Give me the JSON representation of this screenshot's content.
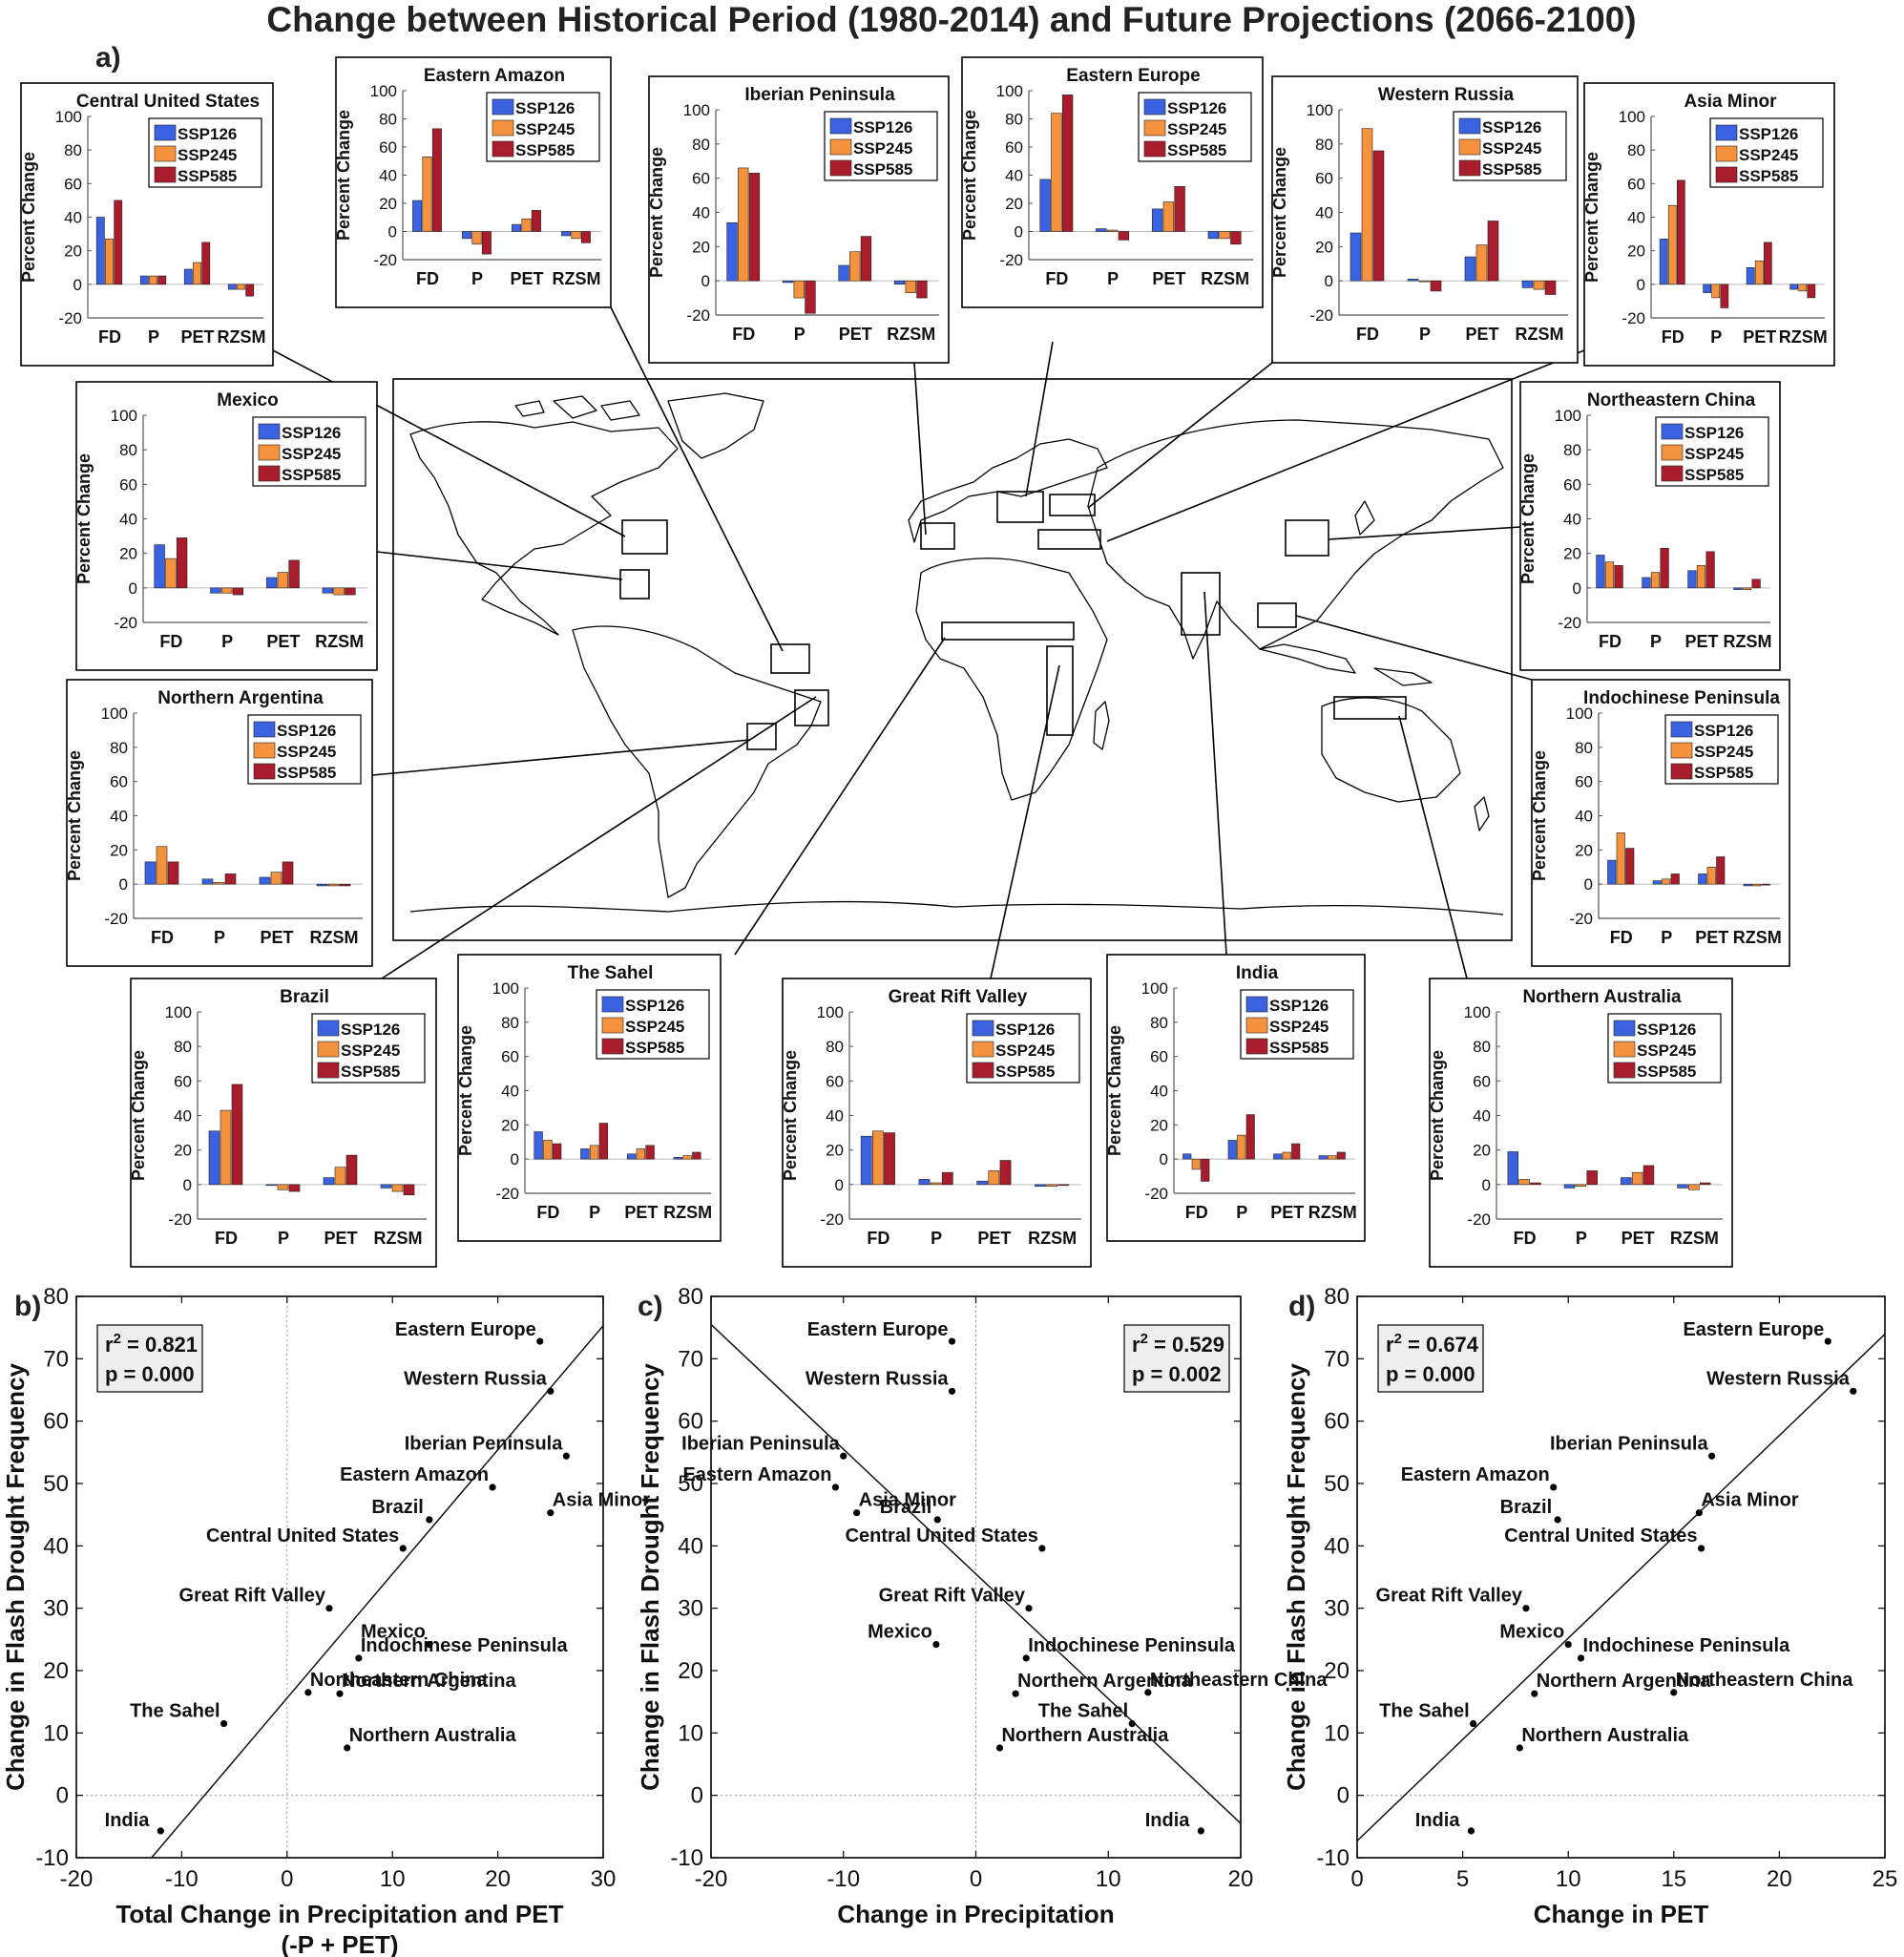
{
  "figure": {
    "title": "Change between Historical Period (1980-2014) and Future Projections (2066-2100)",
    "panel_a_label": "a)"
  },
  "colors": {
    "SSP126": "#3b62e0",
    "SSP245": "#f5923e",
    "SSP585": "#a81c2c",
    "frame": "#000000",
    "r2box": "#eeeeee"
  },
  "chart_data": [
    {
      "type": "bar",
      "panel": "a",
      "description": "Percent change in regional drivers",
      "ylabel": "Percent Change",
      "ylim": [
        -20,
        100
      ],
      "yticks": [
        -20,
        0,
        20,
        40,
        60,
        80,
        100
      ],
      "categories": [
        "FD",
        "P",
        "PET",
        "RZSM"
      ],
      "series_names": [
        "SSP126",
        "SSP245",
        "SSP585"
      ],
      "regions": [
        {
          "name": "Central United States",
          "values": [
            [
              40,
              5,
              9,
              -3
            ],
            [
              27,
              5,
              13,
              -3
            ],
            [
              50,
              5,
              25,
              -7
            ]
          ]
        },
        {
          "name": "Eastern Amazon",
          "values": [
            [
              22,
              -5,
              5,
              -3
            ],
            [
              53,
              -9,
              9,
              -5
            ],
            [
              73,
              -16,
              15,
              -8
            ]
          ]
        },
        {
          "name": "Iberian Peninsula",
          "values": [
            [
              34,
              -1,
              9,
              -2
            ],
            [
              66,
              -10,
              17,
              -7
            ],
            [
              63,
              -19,
              26,
              -10
            ]
          ]
        },
        {
          "name": "Eastern Europe",
          "values": [
            [
              37,
              2,
              16,
              -5
            ],
            [
              84,
              1,
              21,
              -5
            ],
            [
              97,
              -6,
              32,
              -9
            ]
          ]
        },
        {
          "name": "Western Russia",
          "values": [
            [
              28,
              1,
              14,
              -4
            ],
            [
              89,
              0,
              21,
              -5
            ],
            [
              76,
              -6,
              35,
              -8
            ]
          ]
        },
        {
          "name": "Asia Minor",
          "values": [
            [
              27,
              -5,
              10,
              -3
            ],
            [
              47,
              -8,
              14,
              -4
            ],
            [
              62,
              -14,
              25,
              -8
            ]
          ]
        },
        {
          "name": "Mexico",
          "values": [
            [
              25,
              -3,
              6,
              -3
            ],
            [
              17,
              -3,
              9,
              -4
            ],
            [
              29,
              -4,
              16,
              -4
            ]
          ]
        },
        {
          "name": "Northeastern China",
          "values": [
            [
              19,
              6,
              10,
              -1
            ],
            [
              15,
              9,
              13,
              -1
            ],
            [
              13,
              23,
              21,
              5
            ]
          ]
        },
        {
          "name": "Northern Argentina",
          "values": [
            [
              13,
              3,
              4,
              -1
            ],
            [
              22,
              1,
              7,
              -1
            ],
            [
              13,
              6,
              13,
              -1
            ]
          ]
        },
        {
          "name": "Indochinese Peninsula",
          "values": [
            [
              14,
              2,
              6,
              -1
            ],
            [
              30,
              3,
              10,
              -1
            ],
            [
              21,
              6,
              16,
              0
            ]
          ]
        },
        {
          "name": "Brazil",
          "values": [
            [
              31,
              0,
              4,
              -2
            ],
            [
              43,
              -3,
              10,
              -4
            ],
            [
              58,
              -4,
              17,
              -6
            ]
          ]
        },
        {
          "name": "The Sahel",
          "values": [
            [
              16,
              6,
              3,
              1
            ],
            [
              11,
              8,
              6,
              2
            ],
            [
              9,
              21,
              8,
              4
            ]
          ]
        },
        {
          "name": "Great Rift Valley",
          "values": [
            [
              28,
              3,
              2,
              -1
            ],
            [
              31,
              1,
              8,
              -1
            ],
            [
              30,
              7,
              14,
              0
            ]
          ]
        },
        {
          "name": "India",
          "values": [
            [
              3,
              11,
              3,
              2
            ],
            [
              -6,
              14,
              4,
              2
            ],
            [
              -13,
              26,
              9,
              4
            ]
          ]
        },
        {
          "name": "Northern Australia",
          "values": [
            [
              19,
              -2,
              4,
              -2
            ],
            [
              3,
              -1,
              7,
              -3
            ],
            [
              1,
              8,
              11,
              1
            ]
          ]
        }
      ]
    },
    {
      "type": "scatter",
      "panel": "b)",
      "xlabel": "Total Change in Precipitation and PET",
      "xlabel2": "(-P + PET)",
      "ylabel": "Change in Flash Drought Frequency",
      "xlim": [
        -20,
        30
      ],
      "ylim": [
        -10,
        80
      ],
      "xticks": [
        -20,
        -10,
        0,
        10,
        20,
        30
      ],
      "yticks": [
        -10,
        0,
        10,
        20,
        30,
        40,
        50,
        60,
        70,
        80
      ],
      "r2_label": "r",
      "r2_sup": "2",
      "r2_value": "= 0.821",
      "p_text": "p = 0.000",
      "fit": {
        "slope": 1.99,
        "intercept": 15.6
      },
      "points": [
        {
          "label": "Eastern Europe",
          "x": 24.0,
          "y": 72.8
        },
        {
          "label": "Western Russia",
          "x": 25.0,
          "y": 64.8
        },
        {
          "label": "Iberian Peninsula",
          "x": 26.5,
          "y": 54.4
        },
        {
          "label": "Eastern Amazon",
          "x": 19.5,
          "y": 49.4
        },
        {
          "label": "Brazil",
          "x": 13.5,
          "y": 44.2
        },
        {
          "label": "Asia Minor",
          "x": 25.0,
          "y": 45.3
        },
        {
          "label": "Central United States",
          "x": 11.0,
          "y": 39.6
        },
        {
          "label": "Great Rift Valley",
          "x": 4.0,
          "y": 30.0
        },
        {
          "label": "Indochinese Peninsula",
          "x": 6.8,
          "y": 22.0
        },
        {
          "label": "Mexico",
          "x": 13.5,
          "y": 24.2
        },
        {
          "label": "Northeastern China",
          "x": 2.0,
          "y": 16.5
        },
        {
          "label": "Northern Argentina",
          "x": 5.0,
          "y": 16.3
        },
        {
          "label": "The Sahel",
          "x": -6.0,
          "y": 11.5
        },
        {
          "label": "Northern Australia",
          "x": 5.7,
          "y": 7.6
        },
        {
          "label": "India",
          "x": -12.0,
          "y": -5.7
        }
      ]
    },
    {
      "type": "scatter",
      "panel": "c)",
      "xlabel": "Change in Precipitation",
      "ylabel": "Change in Flash Drought Frequency",
      "xlim": [
        -20,
        20
      ],
      "ylim": [
        -10,
        80
      ],
      "xticks": [
        -20,
        -10,
        0,
        10,
        20
      ],
      "yticks": [
        -10,
        0,
        10,
        20,
        30,
        40,
        50,
        60,
        70,
        80
      ],
      "r2_label": "r",
      "r2_sup": "2",
      "r2_value": "= 0.529",
      "p_text": "p = 0.002",
      "fit": {
        "slope": -2.0,
        "intercept": 35.5
      },
      "points": [
        {
          "label": "Eastern Europe",
          "x": -1.8,
          "y": 72.8
        },
        {
          "label": "Western Russia",
          "x": -1.8,
          "y": 64.8
        },
        {
          "label": "Iberian Peninsula",
          "x": -10.0,
          "y": 54.4
        },
        {
          "label": "Eastern Amazon",
          "x": -10.6,
          "y": 49.4
        },
        {
          "label": "Asia Minor",
          "x": -9.0,
          "y": 45.3
        },
        {
          "label": "Brazil",
          "x": -2.9,
          "y": 44.2
        },
        {
          "label": "Central United States",
          "x": 5.0,
          "y": 39.6
        },
        {
          "label": "Great Rift Valley",
          "x": 4.0,
          "y": 30.0
        },
        {
          "label": "Mexico",
          "x": -3.0,
          "y": 24.2
        },
        {
          "label": "Indochinese Peninsula",
          "x": 3.8,
          "y": 22.0
        },
        {
          "label": "Northeastern China",
          "x": 13.0,
          "y": 16.5
        },
        {
          "label": "Northern Argentina",
          "x": 3.0,
          "y": 16.3
        },
        {
          "label": "The Sahel",
          "x": 11.8,
          "y": 11.5
        },
        {
          "label": "Northern Australia",
          "x": 1.8,
          "y": 7.6
        },
        {
          "label": "India",
          "x": 17.0,
          "y": -5.7
        }
      ]
    },
    {
      "type": "scatter",
      "panel": "d)",
      "xlabel": "Change in PET",
      "ylabel": "Change in Flash Drought Frequency",
      "xlim": [
        0,
        25
      ],
      "ylim": [
        -10,
        80
      ],
      "xticks": [
        0,
        5,
        10,
        15,
        20,
        25
      ],
      "yticks": [
        -10,
        0,
        10,
        20,
        30,
        40,
        50,
        60,
        70,
        80
      ],
      "r2_label": "r",
      "r2_sup": "2",
      "r2_value": "= 0.674",
      "p_text": "p = 0.000",
      "fit": {
        "slope": 3.25,
        "intercept": -7.3
      },
      "points": [
        {
          "label": "Eastern Europe",
          "x": 22.3,
          "y": 72.8
        },
        {
          "label": "Western Russia",
          "x": 23.5,
          "y": 64.8
        },
        {
          "label": "Iberian Peninsula",
          "x": 16.8,
          "y": 54.4
        },
        {
          "label": "Eastern Amazon",
          "x": 9.3,
          "y": 49.4
        },
        {
          "label": "Brazil",
          "x": 9.5,
          "y": 44.2
        },
        {
          "label": "Asia Minor",
          "x": 16.2,
          "y": 45.3
        },
        {
          "label": "Central United States",
          "x": 16.3,
          "y": 39.6
        },
        {
          "label": "Great Rift Valley",
          "x": 8.0,
          "y": 30.0
        },
        {
          "label": "Mexico",
          "x": 10.0,
          "y": 24.2
        },
        {
          "label": "Indochinese Peninsula",
          "x": 10.6,
          "y": 22.0
        },
        {
          "label": "Northeastern China",
          "x": 15.0,
          "y": 16.5
        },
        {
          "label": "Northern Argentina",
          "x": 8.4,
          "y": 16.3
        },
        {
          "label": "The Sahel",
          "x": 5.5,
          "y": 11.5
        },
        {
          "label": "Northern Australia",
          "x": 7.7,
          "y": 7.6
        },
        {
          "label": "India",
          "x": 5.4,
          "y": -5.7
        }
      ]
    }
  ]
}
